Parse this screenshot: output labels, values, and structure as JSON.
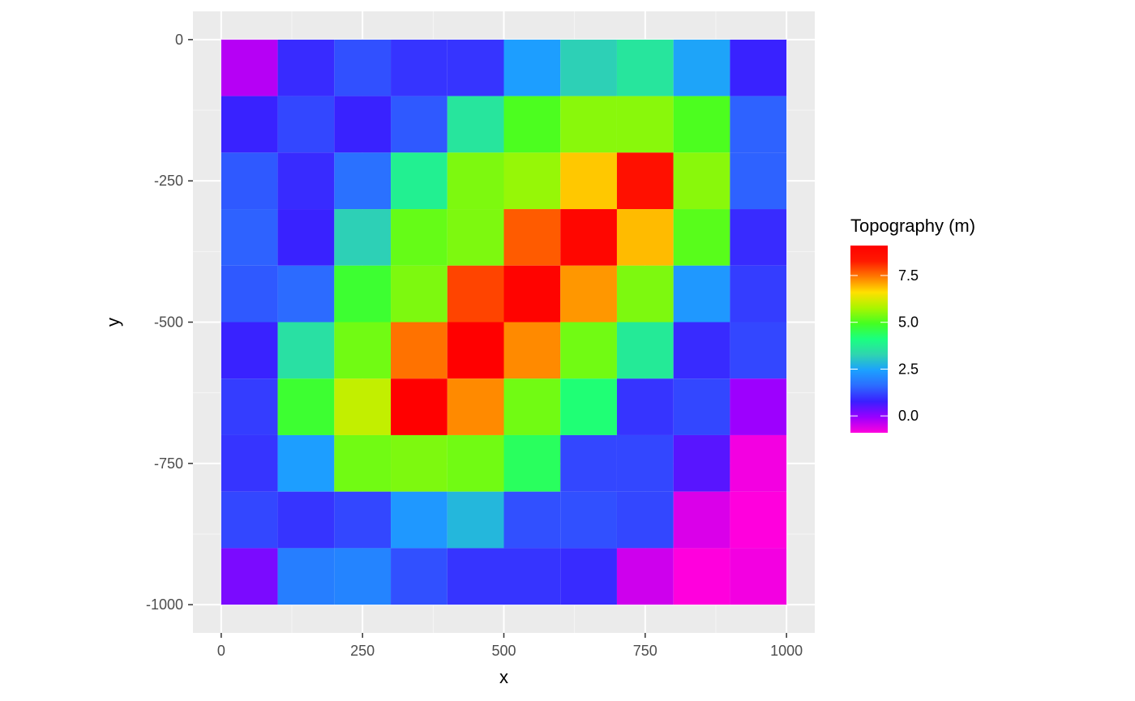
{
  "chart_data": {
    "type": "heatmap",
    "xlabel": "x",
    "ylabel": "y",
    "xlim": [
      -50,
      1050
    ],
    "ylim": [
      -1050,
      50
    ],
    "x_ticks": [
      0,
      250,
      500,
      750,
      1000
    ],
    "y_ticks": [
      0,
      -250,
      -500,
      -750,
      -1000
    ],
    "x_tick_labels": [
      "0",
      "250",
      "500",
      "750",
      "1000"
    ],
    "y_tick_labels": [
      "0",
      "-250",
      "-500",
      "-750",
      "-1000"
    ],
    "grid": true,
    "cell_size": 100,
    "x_centers": [
      50,
      150,
      250,
      350,
      450,
      550,
      650,
      750,
      850,
      950
    ],
    "y_centers": [
      -50,
      -150,
      -250,
      -350,
      -450,
      -550,
      -650,
      -750,
      -850,
      -950
    ],
    "values": [
      [
        -0.3,
        0.9,
        1.3,
        1.0,
        1.0,
        2.4,
        3.2,
        3.6,
        2.5,
        0.8
      ],
      [
        0.8,
        1.2,
        0.8,
        1.4,
        3.6,
        5.0,
        5.5,
        5.5,
        5.0,
        1.5
      ],
      [
        1.4,
        0.9,
        1.7,
        3.8,
        5.4,
        5.6,
        6.8,
        8.6,
        5.5,
        1.5
      ],
      [
        1.5,
        0.8,
        3.2,
        5.2,
        5.4,
        7.7,
        8.9,
        6.9,
        5.1,
        0.9
      ],
      [
        1.4,
        1.6,
        4.8,
        5.4,
        7.9,
        9.0,
        7.2,
        5.4,
        2.3,
        1.1
      ],
      [
        0.8,
        3.5,
        5.3,
        7.5,
        9.2,
        7.3,
        5.3,
        3.7,
        0.9,
        1.2
      ],
      [
        1.1,
        4.8,
        6.0,
        9.2,
        7.3,
        5.3,
        4.2,
        1.0,
        1.2,
        -0.1
      ],
      [
        1.0,
        2.4,
        5.3,
        5.4,
        5.3,
        4.4,
        1.2,
        1.2,
        0.5,
        -0.8
      ],
      [
        1.2,
        1.0,
        1.2,
        2.3,
        2.8,
        1.3,
        1.3,
        1.2,
        -0.6,
        -0.9
      ],
      [
        0.2,
        1.9,
        2.0,
        1.3,
        1.0,
        1.0,
        0.9,
        -0.5,
        -1.0,
        -0.8
      ]
    ],
    "legend": {
      "title": "Topography (m)",
      "position": "right",
      "min": -0.9,
      "max": 9.1,
      "breaks": [
        0,
        2.5,
        5,
        7.5
      ],
      "break_labels": [
        "0.0",
        "2.5",
        "5.0",
        "7.5"
      ]
    },
    "colors": {
      "panel": "#ebebeb",
      "grid_major": "#ffffff",
      "grid_minor": "#f5f5f5",
      "axis_tick": "#333333"
    },
    "palette": [
      "#ff00dd",
      "#9900ff",
      "#3a1fff",
      "#2c6bff",
      "#1ca0ff",
      "#2fd4b0",
      "#1aff80",
      "#44ff22",
      "#aaf500",
      "#ffe000",
      "#ff7a00",
      "#ff1a00",
      "#ff0000"
    ]
  }
}
